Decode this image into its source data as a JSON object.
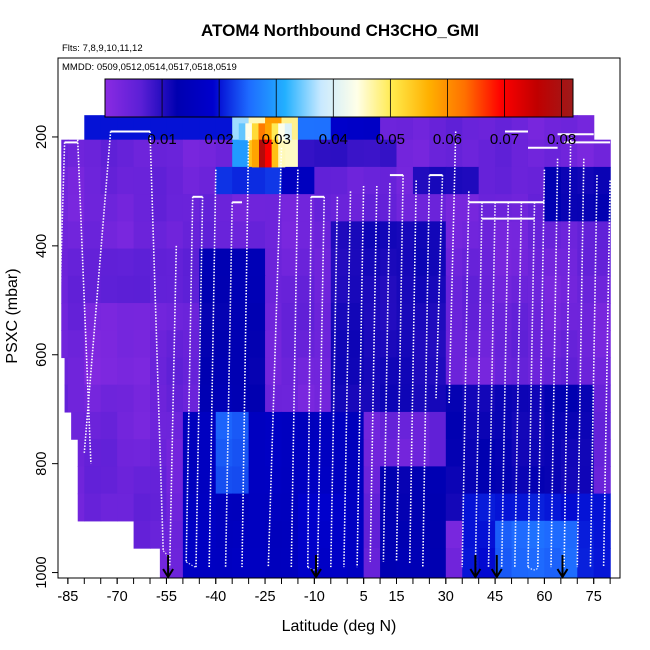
{
  "chart_data": {
    "type": "heatmap",
    "title": "ATOM4 Northbound CH3CHO_GMI",
    "flights_label": "Flts: 7,8,9,10,11,12",
    "dates_label": "MMDD: 0509,0512,0514,0517,0518,0519",
    "xlabel": "Latitude (deg N)",
    "ylabel": "PSXC (mbar)",
    "xlim": [
      -88,
      83
    ],
    "ylim": [
      1010,
      55
    ],
    "x_ticks": [
      -85,
      -70,
      -55,
      -40,
      -25,
      -10,
      5,
      15,
      30,
      45,
      60,
      75
    ],
    "x_tick_labels": [
      "-85",
      "-70",
      "-55",
      "-40",
      "-25",
      "-10",
      "5",
      "15",
      "30",
      "45",
      "60",
      "75"
    ],
    "y_ticks": [
      200,
      400,
      600,
      800,
      1000
    ],
    "y_tick_labels": [
      "200",
      "400",
      "600",
      "800",
      "1000"
    ],
    "colorbar": {
      "min": 0.0,
      "max": 0.082,
      "ticks": [
        0.01,
        0.02,
        0.03,
        0.04,
        0.05,
        0.06,
        0.07,
        0.08
      ],
      "tick_labels": [
        "0.01",
        "0.02",
        "0.03",
        "0.04",
        "0.05",
        "0.06",
        "0.07",
        "0.08"
      ],
      "colors": [
        "#8a2be2",
        "#5b1fd6",
        "#0000b0",
        "#0000cd",
        "#1e6bff",
        "#22b0ff",
        "#c8e9ff",
        "#ffffe8",
        "#ffe94a",
        "#ffb000",
        "#ff7000",
        "#ff0000",
        "#c00000",
        "#9e1a1a"
      ]
    },
    "pressure_bins": [
      180,
      230,
      280,
      330,
      380,
      430,
      480,
      530,
      580,
      630,
      680,
      730,
      780,
      830,
      880,
      930,
      980
    ],
    "bin_width_deg": 5,
    "background_value": 0.004,
    "value_patches": [
      {
        "lat": [
          -45,
          -25
        ],
        "p": [
          400,
          720
        ],
        "value": 0.013
      },
      {
        "lat": [
          -75,
          -45
        ],
        "p": [
          430,
          520
        ],
        "value": 0.006
      },
      {
        "lat": [
          -5,
          30
        ],
        "p": [
          380,
          700
        ],
        "value": 0.011
      },
      {
        "lat": [
          -50,
          5
        ],
        "p": [
          700,
          1010
        ],
        "value": 0.016
      },
      {
        "lat": [
          -40,
          -30
        ],
        "p": [
          720,
          860
        ],
        "value": 0.024
      },
      {
        "lat": [
          -15,
          0
        ],
        "p": [
          880,
          1010
        ],
        "value": 0.018
      },
      {
        "lat": [
          10,
          30
        ],
        "p": [
          800,
          1010
        ],
        "value": 0.013
      },
      {
        "lat": [
          30,
          75
        ],
        "p": [
          650,
          900
        ],
        "value": 0.012
      },
      {
        "lat": [
          35,
          80
        ],
        "p": [
          880,
          1010
        ],
        "value": 0.02
      },
      {
        "lat": [
          45,
          70
        ],
        "p": [
          910,
          1010
        ],
        "value": 0.025
      },
      {
        "lat": [
          -80,
          -60
        ],
        "p": [
          520,
          640
        ],
        "value": 0.002
      },
      {
        "lat": [
          20,
          40
        ],
        "p": [
          270,
          330
        ],
        "value": 0.011
      },
      {
        "lat": [
          60,
          80
        ],
        "p": [
          260,
          350
        ],
        "value": 0.012
      },
      {
        "lat": [
          -15,
          15
        ],
        "p": [
          210,
          270
        ],
        "value": 0.009
      },
      {
        "lat": [
          -40,
          -20
        ],
        "p": [
          260,
          310
        ],
        "value": 0.022
      },
      {
        "lat": [
          -20,
          -10
        ],
        "p": [
          270,
          320
        ],
        "value": 0.016
      },
      {
        "lat": [
          -35,
          -30
        ],
        "p": [
          160,
          205
        ],
        "value": 0.036
      },
      {
        "lat": [
          -30,
          -27
        ],
        "p": [
          160,
          205
        ],
        "value": 0.046
      },
      {
        "lat": [
          -27,
          -20
        ],
        "p": [
          160,
          205
        ],
        "value": 0.058
      },
      {
        "lat": [
          -20,
          -17
        ],
        "p": [
          160,
          205
        ],
        "value": 0.047
      },
      {
        "lat": [
          -17,
          -13
        ],
        "p": [
          160,
          205
        ],
        "value": 0.035
      },
      {
        "lat": [
          -13,
          -5
        ],
        "p": [
          160,
          205
        ],
        "value": 0.026
      },
      {
        "lat": [
          -5,
          10
        ],
        "p": [
          160,
          205
        ],
        "value": 0.018
      },
      {
        "lat": [
          -35,
          -30
        ],
        "p": [
          205,
          260
        ],
        "value": 0.03
      },
      {
        "lat": [
          -27,
          -20
        ],
        "p": [
          205,
          260
        ],
        "value": 0.073
      },
      {
        "lat": [
          -20,
          -17
        ],
        "p": [
          205,
          260
        ],
        "value": 0.045
      },
      {
        "lat": [
          -30,
          -27
        ],
        "p": [
          205,
          260
        ],
        "value": 0.055
      }
    ],
    "value_overrides": [
      {
        "lat": [
          -90,
          -5
        ],
        "p": [
          160,
          205
        ],
        "value": 0.02,
        "only_if_below": 0.01
      }
    ],
    "coverage": [
      {
        "lat": [
          -80,
          75
        ],
        "p": [
          160,
          205
        ]
      },
      {
        "lat": [
          -87,
          80
        ],
        "p": [
          205,
          620
        ]
      },
      {
        "lat": [
          -86,
          80
        ],
        "p": [
          620,
          710
        ]
      },
      {
        "lat": [
          -84,
          80
        ],
        "p": [
          710,
          780
        ]
      },
      {
        "lat": [
          -82,
          80
        ],
        "p": [
          780,
          910
        ]
      },
      {
        "lat": [
          -65,
          80
        ],
        "p": [
          910,
          960
        ]
      },
      {
        "lat": [
          -57,
          80
        ],
        "p": [
          960,
          1010
        ]
      }
    ],
    "profiles": [
      {
        "lat_top": -86,
        "p_top": 210,
        "lat_bot": -88,
        "p_bot": 610
      },
      {
        "lat_top": -82,
        "p_top": 205,
        "lat_bot": -78,
        "p_bot": 800
      },
      {
        "lat_top": -72,
        "p_top": 190,
        "lat_bot": -80,
        "p_bot": 780
      },
      {
        "lat_top": -60,
        "p_top": 190,
        "lat_bot": -56,
        "p_bot": 960
      },
      {
        "lat_top": -52,
        "p_top": 400,
        "lat_bot": -54,
        "p_bot": 990
      },
      {
        "lat_top": -47,
        "p_top": 310,
        "lat_bot": -49,
        "p_bot": 980
      },
      {
        "lat_top": -44,
        "p_top": 310,
        "lat_bot": -46,
        "p_bot": 990
      },
      {
        "lat_top": -40,
        "p_top": 260,
        "lat_bot": -42,
        "p_bot": 990
      },
      {
        "lat_top": -35,
        "p_top": 320,
        "lat_bot": -37,
        "p_bot": 990
      },
      {
        "lat_top": -30,
        "p_top": 200,
        "lat_bot": -32,
        "p_bot": 990
      },
      {
        "lat_top": -20,
        "p_top": 220,
        "lat_bot": -24,
        "p_bot": 990
      },
      {
        "lat_top": -15,
        "p_top": 260,
        "lat_bot": -17,
        "p_bot": 990
      },
      {
        "lat_top": -11,
        "p_top": 310,
        "lat_bot": -12,
        "p_bot": 990
      },
      {
        "lat_top": -7,
        "p_top": 310,
        "lat_bot": -9,
        "p_bot": 990
      },
      {
        "lat_top": -3,
        "p_top": 310,
        "lat_bot": -5,
        "p_bot": 990
      },
      {
        "lat_top": 1,
        "p_top": 300,
        "lat_bot": -1,
        "p_bot": 990
      },
      {
        "lat_top": 5,
        "p_top": 290,
        "lat_bot": 3,
        "p_bot": 990
      },
      {
        "lat_top": 9,
        "p_top": 290,
        "lat_bot": 7,
        "p_bot": 980
      },
      {
        "lat_top": 13,
        "p_top": 285,
        "lat_bot": 11,
        "p_bot": 980
      },
      {
        "lat_top": 17,
        "p_top": 270,
        "lat_bot": 15,
        "p_bot": 980
      },
      {
        "lat_top": 21,
        "p_top": 280,
        "lat_bot": 19,
        "p_bot": 985
      },
      {
        "lat_top": 25,
        "p_top": 270,
        "lat_bot": 23,
        "p_bot": 990
      },
      {
        "lat_top": 29,
        "p_top": 270,
        "lat_bot": 27,
        "p_bot": 680
      },
      {
        "lat_top": 33,
        "p_top": 190,
        "lat_bot": 31,
        "p_bot": 690
      },
      {
        "lat_top": 37,
        "p_top": 300,
        "lat_bot": 35,
        "p_bot": 990
      },
      {
        "lat_top": 41,
        "p_top": 320,
        "lat_bot": 39,
        "p_bot": 990
      },
      {
        "lat_top": 45,
        "p_top": 320,
        "lat_bot": 43,
        "p_bot": 990
      },
      {
        "lat_top": 49,
        "p_top": 320,
        "lat_bot": 47,
        "p_bot": 990
      },
      {
        "lat_top": 53,
        "p_top": 320,
        "lat_bot": 51,
        "p_bot": 990
      },
      {
        "lat_top": 57,
        "p_top": 320,
        "lat_bot": 55,
        "p_bot": 990
      },
      {
        "lat_top": 60,
        "p_top": 260,
        "lat_bot": 58,
        "p_bot": 990
      },
      {
        "lat_top": 64,
        "p_top": 240,
        "lat_bot": 62,
        "p_bot": 990
      },
      {
        "lat_top": 68,
        "p_top": 200,
        "lat_bot": 66,
        "p_bot": 990
      },
      {
        "lat_top": 72,
        "p_top": 240,
        "lat_bot": 70,
        "p_bot": 990
      },
      {
        "lat_top": 76,
        "p_top": 270,
        "lat_bot": 74,
        "p_bot": 990
      },
      {
        "lat_top": 80,
        "p_top": 280,
        "lat_bot": 78,
        "p_bot": 990
      }
    ],
    "cruise_legs": [
      {
        "lat": [
          -86,
          -82
        ],
        "p": 210
      },
      {
        "lat": [
          -72,
          -60
        ],
        "p": 190
      },
      {
        "lat": [
          -47,
          -44
        ],
        "p": 310
      },
      {
        "lat": [
          -35,
          -32
        ],
        "p": 320
      },
      {
        "lat": [
          -11,
          -7
        ],
        "p": 310
      },
      {
        "lat": [
          13,
          17
        ],
        "p": 270
      },
      {
        "lat": [
          25,
          29
        ],
        "p": 270
      },
      {
        "lat": [
          37,
          60
        ],
        "p": 320
      },
      {
        "lat": [
          41,
          57
        ],
        "p": 350
      },
      {
        "lat": [
          48,
          55
        ],
        "p": 190
      },
      {
        "lat": [
          55,
          64
        ],
        "p": 220
      },
      {
        "lat": [
          64,
          75
        ],
        "p": 195
      },
      {
        "lat": [
          66,
          80
        ],
        "p": 210
      }
    ],
    "arrow_latitudes": [
      -54.5,
      -9.5,
      39,
      45.5,
      65.5
    ]
  }
}
